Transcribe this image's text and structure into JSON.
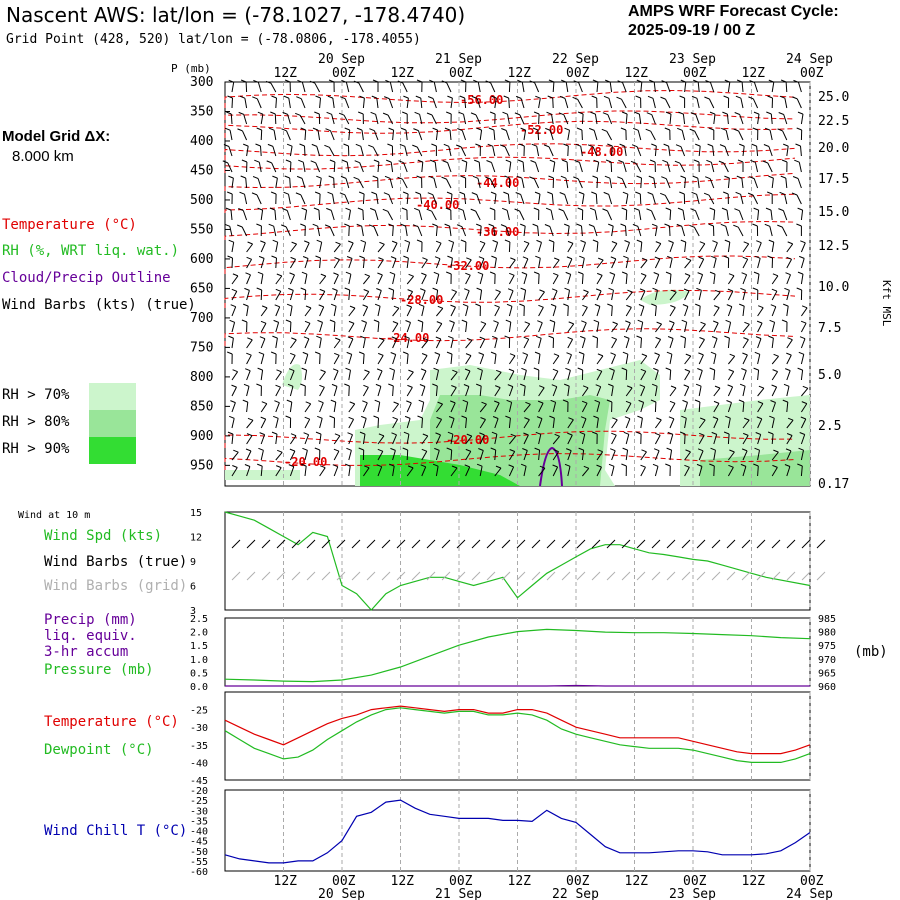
{
  "header": {
    "title": "Nascent AWS:  lat/lon = (-78.1027, -178.4740)",
    "grid": "Grid Point (428, 520) lat/lon = (-78.0806, -178.4055)",
    "cycle_line1": "AMPS WRF Forecast Cycle:",
    "cycle_line2": "2025-09-19 / 00  Z"
  },
  "legend": {
    "model_grid_label": "Model Grid ΔX:",
    "model_grid_value": "8.000 km",
    "temperature": "Temperature (°C)",
    "rh": "RH (%, WRT liq. wat.)",
    "cloud": "Cloud/Precip Outline",
    "wind": "Wind Barbs (kts) (true)",
    "rh70": "RH > 70%",
    "rh80": "RH > 80%",
    "rh90": "RH > 90%"
  },
  "panel_labels": {
    "p_axis": "P (mb)",
    "kft": "Kft MSL",
    "wind10": "Wind at 10 m",
    "wind_spd": "Wind Spd (kts)",
    "barbs_true": "Wind Barbs (true)",
    "barbs_grid": "Wind Barbs (grid)",
    "precip1": "Precip (mm)",
    "precip2": "liq. equiv.",
    "precip3": "3-hr accum",
    "pressure": "Pressure (mb)",
    "mb_unit": "(mb)",
    "temp": "Temperature (°C)",
    "dew": "Dewpoint (°C)",
    "windchill": "Wind Chill T (°C)"
  },
  "colors": {
    "temp": "#e00000",
    "dew": "#00c000",
    "green": "#22bb22",
    "purple": "#660099",
    "blue": "#0000b0",
    "grid": "#aaaaaa",
    "rh70": "#ccf5cc",
    "rh80": "#99e599",
    "rh90": "#33dd33"
  },
  "chart_data": {
    "type": "meteogram",
    "time_ticks": [
      "12Z",
      "00Z",
      "12Z",
      "00Z",
      "12Z",
      "00Z",
      "12Z",
      "00Z",
      "12Z",
      "00Z"
    ],
    "date_ticks": [
      {
        "label": "20 Sep",
        "index": 1
      },
      {
        "label": "21 Sep",
        "index": 3
      },
      {
        "label": "22 Sep",
        "index": 5
      },
      {
        "label": "23 Sep",
        "index": 7
      },
      {
        "label": "24 Sep",
        "index": 9
      }
    ],
    "hours_start": 0,
    "hours_end": 120,
    "tick_hours": [
      12,
      24,
      36,
      48,
      60,
      72,
      84,
      96,
      108,
      120
    ],
    "upper": {
      "pressure_ticks": [
        300,
        350,
        400,
        450,
        500,
        550,
        600,
        650,
        700,
        750,
        800,
        850,
        900,
        950
      ],
      "kft_ticks": [
        "25.0",
        "22.5",
        "20.0",
        "17.5",
        "15.0",
        "12.5",
        "10.0",
        "7.5",
        "5.0",
        "2.5",
        "0.17"
      ],
      "isotherm_labels": [
        "-56.00",
        "-52.00",
        "-48.00",
        "-44.00",
        "-40.00",
        "-36.00",
        "-32.00",
        "-28.00",
        "-24.00",
        "-20.00",
        "-20.00"
      ]
    },
    "wind10": {
      "yticks": [
        15,
        12,
        9,
        6,
        3
      ],
      "ylim": [
        3,
        15
      ],
      "speed_kts": [
        15,
        14.5,
        14,
        13,
        12,
        11,
        12.5,
        12,
        6,
        5,
        3,
        5,
        6,
        6.5,
        7,
        7,
        6.5,
        6,
        6.5,
        7,
        4.5,
        6,
        7.5,
        8.5,
        9.5,
        10.5,
        11,
        11,
        10.5,
        10,
        9.8,
        9.5,
        9.2,
        9,
        8.5,
        8,
        7.5,
        7,
        6
      ],
      "hours": [
        0,
        3,
        6,
        9,
        12,
        15,
        18,
        21,
        24,
        27,
        30,
        33,
        36,
        39,
        42,
        45,
        48,
        51,
        54,
        57,
        60,
        63,
        66,
        69,
        72,
        75,
        78,
        81,
        84,
        87,
        90,
        93,
        96,
        99,
        102,
        105,
        108,
        111,
        120
      ]
    },
    "precip_pressure": {
      "precip_ticks": [
        "2.5",
        "2.0",
        "1.5",
        "1.0",
        "0.5",
        "0.0"
      ],
      "precip_ylim": [
        0,
        2.5
      ],
      "pressure_ticks": [
        985,
        980,
        975,
        970,
        965,
        960
      ],
      "pressure_ylim": [
        960,
        985
      ],
      "hours": [
        0,
        6,
        12,
        18,
        24,
        30,
        36,
        42,
        48,
        54,
        60,
        66,
        72,
        78,
        84,
        90,
        96,
        102,
        108,
        114,
        120
      ],
      "pressure_mb": [
        962.5,
        962.2,
        961.8,
        961.6,
        962.2,
        964,
        967,
        971,
        975,
        978,
        980,
        980.8,
        980.4,
        979.8,
        979.6,
        979.6,
        979.3,
        978.9,
        978.5,
        977.8,
        977.4
      ],
      "precip_mm": [
        0,
        0,
        0,
        0,
        0,
        0,
        0,
        0,
        0,
        0,
        0,
        0,
        0.02,
        0,
        0,
        0,
        0,
        0,
        0,
        0,
        0
      ]
    },
    "temp_dew": {
      "yticks": [
        -25,
        -30,
        -35,
        -40,
        -45
      ],
      "ylim": [
        -45,
        -20
      ],
      "hours": [
        0,
        3,
        6,
        9,
        12,
        15,
        18,
        21,
        24,
        27,
        30,
        33,
        36,
        39,
        42,
        45,
        48,
        51,
        54,
        57,
        60,
        63,
        66,
        69,
        72,
        75,
        78,
        81,
        84,
        87,
        90,
        93,
        96,
        99,
        102,
        105,
        108,
        111,
        114,
        117,
        120
      ],
      "temperature": [
        -28,
        -30,
        -32,
        -33.5,
        -35,
        -33,
        -31,
        -29,
        -27.5,
        -26.5,
        -25,
        -24.5,
        -24,
        -24.5,
        -25,
        -25.5,
        -25,
        -25,
        -26,
        -26,
        -25,
        -25,
        -26,
        -28,
        -30,
        -31,
        -32,
        -33,
        -33,
        -33,
        -33,
        -33,
        -34,
        -35,
        -36,
        -37,
        -37.5,
        -37.5,
        -37.5,
        -36.5,
        -35
      ],
      "dewpoint": [
        -31,
        -33.5,
        -36,
        -37.5,
        -39,
        -38.5,
        -36.5,
        -33.5,
        -31,
        -28.5,
        -26.5,
        -25,
        -24.5,
        -25,
        -25.5,
        -26,
        -25.5,
        -25.5,
        -26.5,
        -26.5,
        -26,
        -26.5,
        -28,
        -30.5,
        -32,
        -33,
        -34,
        -35,
        -35.5,
        -36,
        -36,
        -36,
        -36.5,
        -37.5,
        -38.5,
        -39.5,
        -40,
        -40,
        -40,
        -39,
        -37.5
      ]
    },
    "windchill": {
      "yticks": [
        -20,
        -25,
        -30,
        -35,
        -40,
        -45,
        -50,
        -55,
        -60
      ],
      "ylim": [
        -60,
        -20
      ],
      "hours": [
        0,
        3,
        6,
        9,
        12,
        15,
        18,
        21,
        24,
        27,
        30,
        33,
        36,
        39,
        42,
        45,
        48,
        51,
        54,
        57,
        60,
        63,
        66,
        69,
        72,
        75,
        78,
        81,
        84,
        87,
        90,
        93,
        96,
        99,
        102,
        105,
        108,
        111,
        114,
        117,
        120
      ],
      "chill": [
        -52,
        -54,
        -55,
        -56,
        -56,
        -55,
        -55,
        -51,
        -45,
        -33,
        -31,
        -26,
        -25,
        -29,
        -32,
        -33,
        -34,
        -34,
        -34,
        -35,
        -35,
        -35.5,
        -30,
        -34,
        -36,
        -42,
        -48,
        -51,
        -51,
        -51,
        -50.5,
        -50,
        -50,
        -50.5,
        -52,
        -52,
        -52,
        -51.5,
        -50,
        -46,
        -41
      ]
    }
  }
}
